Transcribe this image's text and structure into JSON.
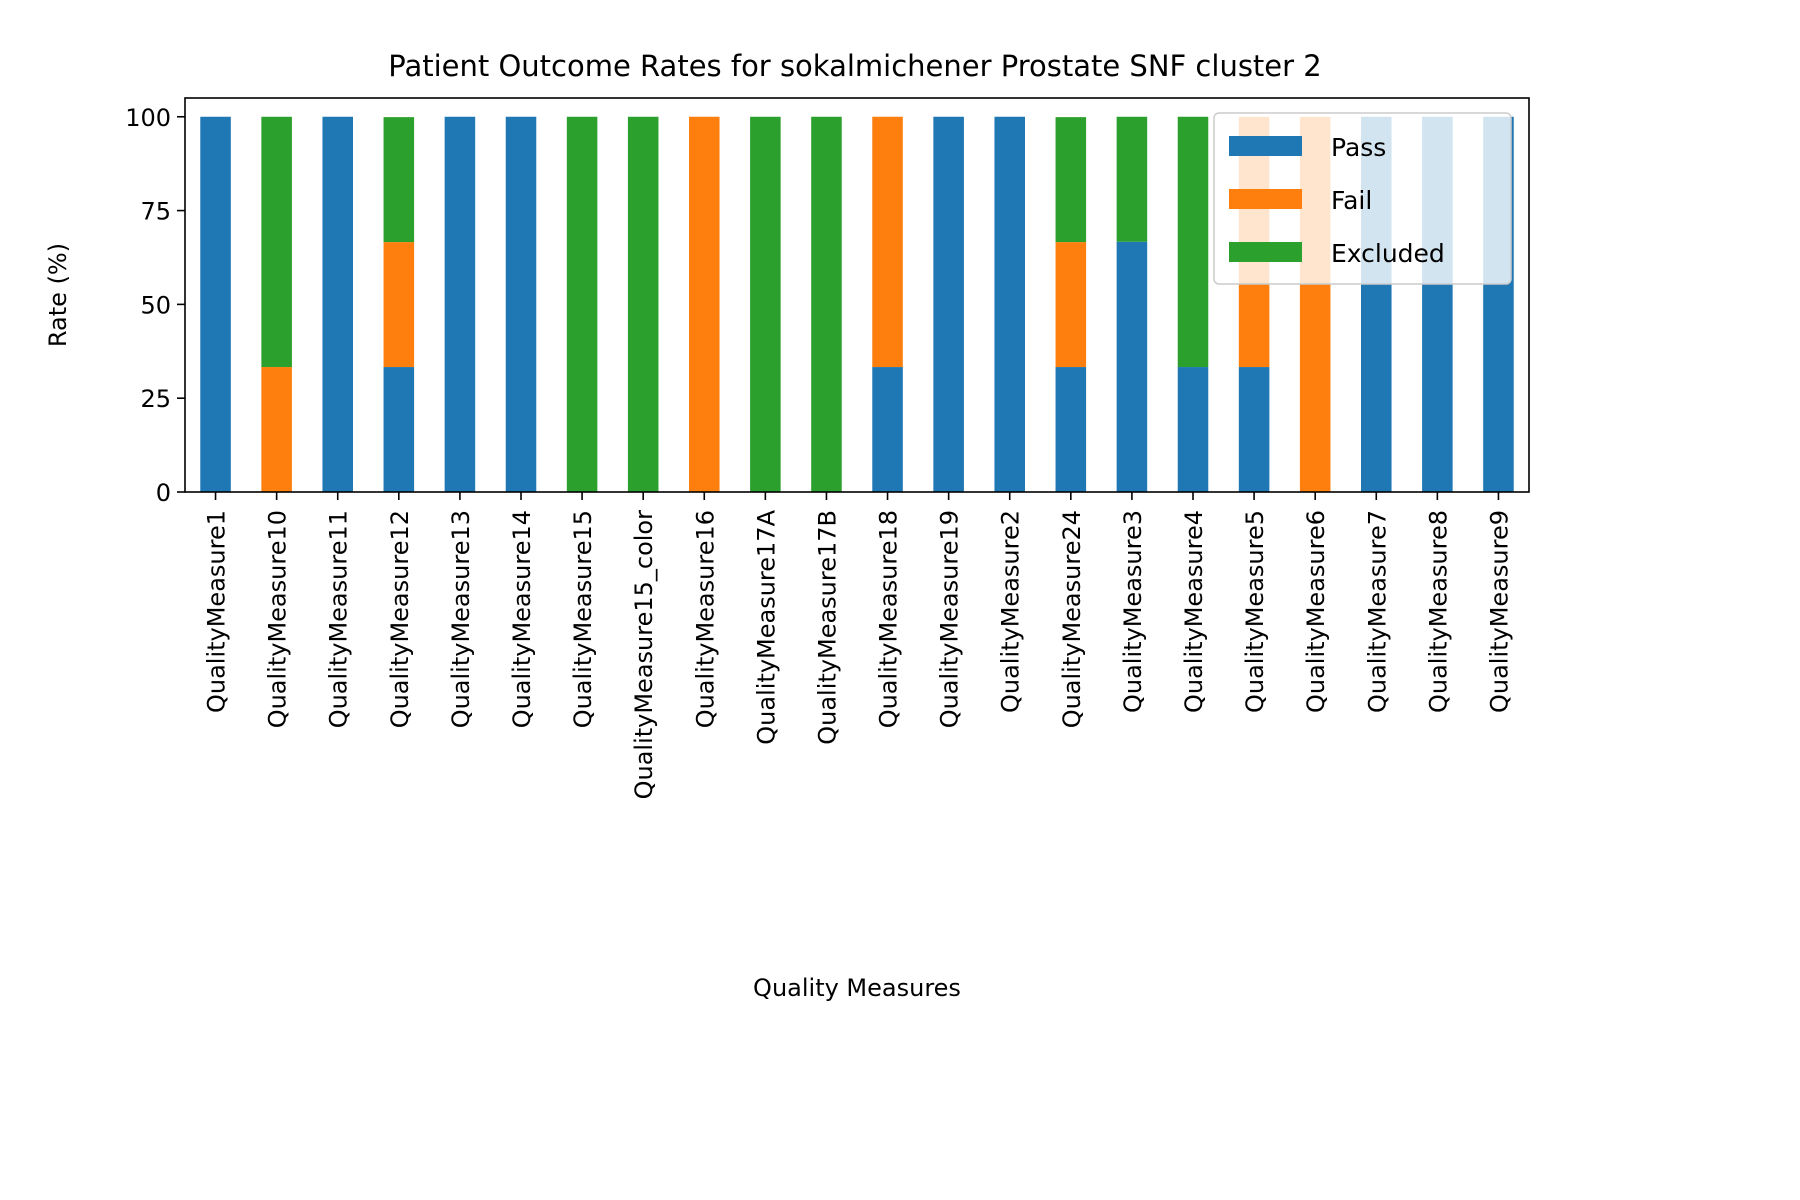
{
  "chart_data": {
    "type": "bar",
    "stacked": true,
    "title": "Patient Outcome Rates for sokalmichener Prostate SNF cluster 2",
    "xlabel": "Quality Measures",
    "ylabel": "Rate (%)",
    "ylim": [
      0,
      105
    ],
    "yticks": [
      0,
      25,
      50,
      75,
      100
    ],
    "grid": false,
    "legend_position": "top-right",
    "categories": [
      "QualityMeasure1",
      "QualityMeasure10",
      "QualityMeasure11",
      "QualityMeasure12",
      "QualityMeasure13",
      "QualityMeasure14",
      "QualityMeasure15",
      "QualityMeasure15_color",
      "QualityMeasure16",
      "QualityMeasure17A",
      "QualityMeasure17B",
      "QualityMeasure18",
      "QualityMeasure19",
      "QualityMeasure2",
      "QualityMeasure24",
      "QualityMeasure3",
      "QualityMeasure4",
      "QualityMeasure5",
      "QualityMeasure6",
      "QualityMeasure7",
      "QualityMeasure8",
      "QualityMeasure9"
    ],
    "series": [
      {
        "name": "Pass",
        "color": "#1f77b4",
        "values": [
          100,
          0,
          100,
          33.3,
          100,
          100,
          0,
          0,
          0,
          0,
          0,
          33.3,
          100,
          100,
          33.3,
          66.7,
          33.3,
          33.3,
          0,
          100,
          100,
          100
        ]
      },
      {
        "name": "Fail",
        "color": "#ff7f0e",
        "values": [
          0,
          33.3,
          0,
          33.3,
          0,
          0,
          0,
          0,
          100,
          0,
          0,
          66.7,
          0,
          0,
          33.3,
          0,
          0,
          66.7,
          100,
          0,
          0,
          0
        ]
      },
      {
        "name": "Excluded",
        "color": "#2ca02c",
        "values": [
          0,
          66.7,
          0,
          33.3,
          0,
          0,
          100,
          100,
          0,
          100,
          100,
          0,
          0,
          0,
          33.3,
          33.3,
          66.7,
          0,
          0,
          0,
          0,
          0
        ]
      }
    ]
  }
}
